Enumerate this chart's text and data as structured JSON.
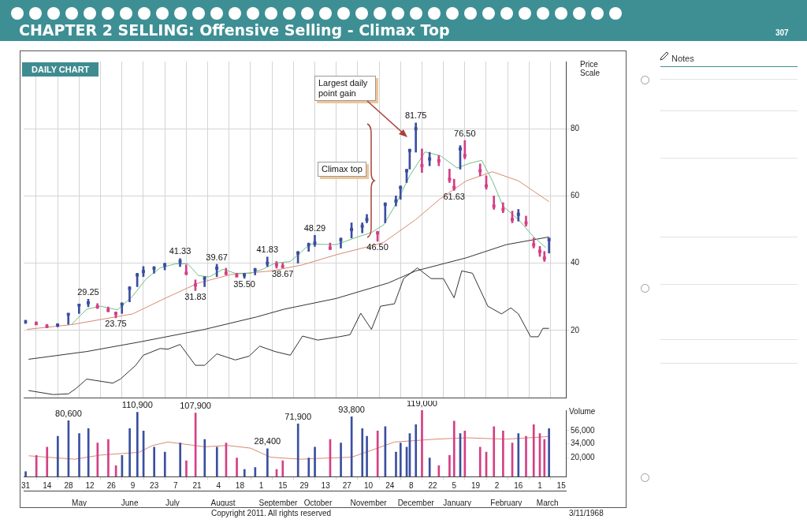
{
  "chart_data": [
    {
      "type": "bar",
      "title": "CHAPTER 2 SELLING: Offensive Selling - Climax Top",
      "ylabel": "Price Scale",
      "xlim": [
        "1967-03-30",
        "1968-03-18"
      ],
      "ylim": [
        0,
        100
      ],
      "yticks": [
        20,
        40,
        60,
        80
      ],
      "grid": true,
      "tick_labels": "y",
      "xticks": [
        {
          "value": "1967-03-31",
          "label": null
        },
        {
          "value": "1967-04-14",
          "label": null
        },
        {
          "value": "1967-04-28",
          "label": null
        },
        {
          "value": "1967-05-12",
          "label": null
        },
        {
          "value": "1967-05-26",
          "label": null
        },
        {
          "value": "1967-06-09",
          "label": null
        },
        {
          "value": "1967-06-23",
          "label": null
        },
        {
          "value": "1967-07-07",
          "label": null
        },
        {
          "value": "1967-07-21",
          "label": null
        },
        {
          "value": "1967-08-04",
          "label": null
        },
        {
          "value": "1967-08-18",
          "label": null
        },
        {
          "value": "1967-09-01",
          "label": null
        },
        {
          "value": "1967-09-15",
          "label": null
        },
        {
          "value": "1967-09-29",
          "label": null
        },
        {
          "value": "1967-10-13",
          "label": null
        },
        {
          "value": "1967-10-27",
          "label": null
        },
        {
          "value": "1967-11-10",
          "label": null
        },
        {
          "value": "1967-11-24",
          "label": null
        },
        {
          "value": "1967-12-08",
          "label": null
        },
        {
          "value": "1967-12-22",
          "label": null
        },
        {
          "value": "1968-01-05",
          "label": null
        },
        {
          "value": "1968-01-19",
          "label": null
        },
        {
          "value": "1968-02-02",
          "label": null
        },
        {
          "value": "1968-02-16",
          "label": null
        },
        {
          "value": "1968-03-01",
          "label": null
        },
        {
          "value": "1968-03-15",
          "label": null
        }
      ],
      "x": [
        "1967-03-31",
        "1967-04-07",
        "1967-04-14",
        "1967-04-21",
        "1967-04-28",
        "1967-05-05",
        "1967-05-11",
        "1967-05-17",
        "1967-05-24",
        "1967-05-29",
        "1967-06-02",
        "1967-06-07",
        "1967-06-12",
        "1967-06-16",
        "1967-06-23",
        "1967-06-30",
        "1967-07-10",
        "1967-07-14",
        "1967-07-20",
        "1967-07-26",
        "1967-08-03",
        "1967-08-09",
        "1967-08-16",
        "1967-08-21",
        "1967-08-28",
        "1967-09-05",
        "1967-09-11",
        "1967-09-15",
        "1967-09-25",
        "1967-10-02",
        "1967-10-06",
        "1967-10-16",
        "1967-10-23",
        "1967-10-30",
        "1967-11-06",
        "1967-11-09",
        "1967-11-16",
        "1967-11-21",
        "1967-11-28",
        "1967-12-01",
        "1967-12-05",
        "1967-12-07",
        "1967-12-11",
        "1967-12-15",
        "1967-12-20",
        "1967-12-26",
        "1968-01-02",
        "1968-01-05",
        "1968-01-09",
        "1968-01-12",
        "1968-01-22",
        "1968-01-26",
        "1968-01-31",
        "1968-02-06",
        "1968-02-12",
        "1968-02-16",
        "1968-02-21",
        "1968-02-26",
        "1968-03-01",
        "1968-03-04",
        "1968-03-07"
      ],
      "series": [
        {
          "type": "bar",
          "base": [
            22,
            21.8,
            20.8,
            21,
            21.8,
            25,
            27,
            26.5,
            25.5,
            23.75,
            25,
            28.5,
            33,
            36,
            37,
            38,
            39,
            36.5,
            31.83,
            33,
            36,
            36.5,
            36,
            35.5,
            36.5,
            39,
            38.5,
            38.67,
            40,
            43.5,
            45,
            44,
            44.5,
            47.5,
            49,
            52,
            46.5,
            52,
            57,
            59,
            64,
            68,
            73,
            67,
            69,
            69,
            64,
            61.63,
            68,
            71,
            66,
            62,
            56,
            55,
            52,
            52.5,
            51,
            44.5,
            42,
            40.5,
            43
          ],
          "values": [
            1,
            0.8,
            1,
            1,
            3.2,
            2.8,
            2.25,
            1.5,
            1.5,
            1.75,
            3,
            4.5,
            4,
            3,
            2,
            2,
            2.33,
            3,
            3.17,
            3,
            3.67,
            2,
            1,
            1.5,
            2,
            2.83,
            2,
            1.33,
            3.5,
            2.5,
            3.29,
            2,
            3,
            4.5,
            3,
            2.5,
            3,
            6,
            3,
            4,
            4,
            6,
            8.75,
            7,
            4,
            3,
            4,
            3.37,
            7,
            5.5,
            3.5,
            4,
            4,
            3,
            3.5,
            3.5,
            3,
            3,
            3,
            3,
            4.5
          ],
          "colors": [
            "#3a4fa0",
            "#d43f85",
            "#d43f85",
            "#3a4fa0",
            "#3a4fa0",
            "#3a4fa0",
            "#3a4fa0",
            "#d43f85",
            "#d43f85",
            "#d43f85",
            "#3a4fa0",
            "#3a4fa0",
            "#3a4fa0",
            "#3a4fa0",
            "#3a4fa0",
            "#3a4fa0",
            "#3a4fa0",
            "#d43f85",
            "#d43f85",
            "#3a4fa0",
            "#3a4fa0",
            "#d43f85",
            "#d43f85",
            "#3a4fa0",
            "#3a4fa0",
            "#3a4fa0",
            "#d43f85",
            "#d43f85",
            "#3a4fa0",
            "#3a4fa0",
            "#3a4fa0",
            "#d43f85",
            "#3a4fa0",
            "#3a4fa0",
            "#3a4fa0",
            "#3a4fa0",
            "#d43f85",
            "#3a4fa0",
            "#3a4fa0",
            "#3a4fa0",
            "#3a4fa0",
            "#3a4fa0",
            "#3a4fa0",
            "#d43f85",
            "#3a4fa0",
            "#d43f85",
            "#d43f85",
            "#d43f85",
            "#3a4fa0",
            "#d43f85",
            "#d43f85",
            "#d43f85",
            "#d43f85",
            "#d43f85",
            "#d43f85",
            "#3a4fa0",
            "#d43f85",
            "#d43f85",
            "#d43f85",
            "#d43f85",
            "#3a4fa0"
          ]
        },
        {
          "type": "scatter",
          "marker": "square",
          "values": [
            22.6,
            22,
            21.2,
            21.6,
            24.8,
            27.5,
            28.2,
            27,
            26,
            25,
            27.8,
            32.5,
            36.5,
            37.5,
            38.5,
            39.5,
            40.5,
            37,
            33.5,
            35.5,
            38.5,
            37,
            36.2,
            36.5,
            38,
            40,
            39.5,
            39,
            43,
            45.5,
            46,
            44.5,
            47,
            50,
            51,
            53,
            49,
            57.5,
            58.5,
            62.5,
            67.5,
            73.5,
            80,
            69,
            71,
            70.5,
            65,
            62.5,
            74,
            72,
            67.5,
            63,
            57,
            56,
            53,
            54.5,
            52,
            45.5,
            43.5,
            41.5,
            47
          ],
          "colors": [
            "#3a4fa0",
            "#d43f85",
            "#d43f85",
            "#3a4fa0",
            "#3a4fa0",
            "#3a4fa0",
            "#3a4fa0",
            "#d43f85",
            "#d43f85",
            "#d43f85",
            "#3a4fa0",
            "#3a4fa0",
            "#3a4fa0",
            "#3a4fa0",
            "#3a4fa0",
            "#3a4fa0",
            "#3a4fa0",
            "#d43f85",
            "#d43f85",
            "#3a4fa0",
            "#3a4fa0",
            "#d43f85",
            "#d43f85",
            "#3a4fa0",
            "#3a4fa0",
            "#3a4fa0",
            "#d43f85",
            "#d43f85",
            "#3a4fa0",
            "#3a4fa0",
            "#3a4fa0",
            "#d43f85",
            "#3a4fa0",
            "#3a4fa0",
            "#3a4fa0",
            "#3a4fa0",
            "#d43f85",
            "#3a4fa0",
            "#3a4fa0",
            "#3a4fa0",
            "#3a4fa0",
            "#3a4fa0",
            "#3a4fa0",
            "#d43f85",
            "#3a4fa0",
            "#d43f85",
            "#d43f85",
            "#d43f85",
            "#3a4fa0",
            "#d43f85",
            "#d43f85",
            "#d43f85",
            "#d43f85",
            "#d43f85",
            "#d43f85",
            "#3a4fa0",
            "#d43f85",
            "#d43f85",
            "#d43f85",
            "#d43f85",
            "#3a4fa0"
          ]
        },
        {
          "type": "line",
          "color": "#6fbf85",
          "x": [
            "1967-04-30",
            "1967-05-10",
            "1967-05-19",
            "1967-05-30",
            "1967-06-09",
            "1967-06-18",
            "1967-06-27",
            "1967-07-07",
            "1967-07-15",
            "1967-07-22",
            "1967-07-29",
            "1967-08-07",
            "1967-08-15",
            "1967-08-25",
            "1967-09-02",
            "1967-09-10",
            "1967-09-20",
            "1967-10-03",
            "1967-10-20",
            "1967-11-03",
            "1967-11-12",
            "1967-11-20",
            "1967-11-28",
            "1967-12-07",
            "1967-12-17",
            "1967-12-27",
            "1968-01-07",
            "1968-01-15",
            "1968-01-23",
            "1968-01-30",
            "1968-02-06",
            "1968-02-16",
            "1968-02-26",
            "1968-03-05"
          ],
          "values": [
            21.7,
            26.3,
            27.2,
            26.1,
            30.2,
            35.4,
            38.6,
            39.8,
            39.8,
            36.3,
            35.9,
            38.2,
            37,
            37,
            38.2,
            40,
            40.5,
            45.7,
            45.5,
            47.8,
            49.1,
            51.4,
            57.6,
            66,
            73.1,
            72,
            68.3,
            69.7,
            70.6,
            64.5,
            56.9,
            53,
            47.8,
            44.6
          ]
        },
        {
          "type": "line",
          "color": "#d98a70",
          "x": [
            "1967-04-01",
            "1967-04-30",
            "1967-06-09",
            "1967-06-30",
            "1967-07-22",
            "1967-08-12",
            "1967-09-08",
            "1967-09-28",
            "1967-10-20",
            "1967-11-15",
            "1967-11-20",
            "1967-12-11",
            "1967-12-27",
            "1968-01-13",
            "1968-01-30",
            "1968-02-16",
            "1968-03-07"
          ],
          "values": [
            20.3,
            21.7,
            24.9,
            29.5,
            34.1,
            36.6,
            37.7,
            39.5,
            42.5,
            45.5,
            46.2,
            53,
            59.2,
            64.5,
            67.2,
            64.5,
            58.3
          ]
        },
        {
          "type": "line",
          "color": "#333333",
          "x": [
            "1967-04-02",
            "1967-05-10",
            "1967-06-13",
            "1967-07-26",
            "1967-08-29",
            "1967-09-16",
            "1967-10-20",
            "1967-11-23",
            "1967-12-11",
            "1968-01-13",
            "1968-02-08",
            "1968-03-07"
          ],
          "values": [
            11.4,
            13.7,
            16.5,
            20.3,
            24,
            26.3,
            29.5,
            34.1,
            37.7,
            41.6,
            45.5,
            47.8
          ]
        },
        {
          "type": "line",
          "color": "#333333",
          "x": [
            "1967-04-02",
            "1967-04-18",
            "1967-04-28",
            "1967-05-03",
            "1967-05-10",
            "1967-05-27",
            "1967-06-01",
            "1967-06-11",
            "1967-06-16",
            "1967-06-27",
            "1967-07-02",
            "1967-07-10",
            "1967-07-20",
            "1967-07-26",
            "1967-08-03",
            "1967-08-15",
            "1967-08-24",
            "1967-08-31",
            "1967-09-10",
            "1967-09-20",
            "1967-09-28",
            "1967-10-08",
            "1967-10-22",
            "1967-10-29",
            "1967-11-05",
            "1967-11-12",
            "1967-11-18",
            "1967-11-27",
            "1967-12-03",
            "1967-12-12",
            "1967-12-21",
            "1967-12-29",
            "1968-01-05",
            "1968-01-10",
            "1968-01-17",
            "1968-01-27",
            "1968-02-05",
            "1968-02-11",
            "1968-02-16",
            "1968-02-24",
            "1968-02-29",
            "1968-03-03",
            "1968-03-07"
          ],
          "values": [
            2.1,
            0.9,
            1.1,
            2.7,
            5.5,
            4.3,
            5.5,
            9.6,
            12.6,
            14.6,
            14.4,
            15.8,
            9.6,
            9.6,
            13,
            11.2,
            12.3,
            15.3,
            13.7,
            12.6,
            18.3,
            17.1,
            18.1,
            18.7,
            25.1,
            20.3,
            27.2,
            27.9,
            35.4,
            38.6,
            35.4,
            35.4,
            29.7,
            37.7,
            37,
            27.2,
            24.9,
            26.7,
            24.9,
            18.1,
            18.1,
            20.6,
            20.6
          ]
        }
      ],
      "annotations": [
        "DAILY CHART",
        "Largest daily point gain",
        "Climax top",
        {
          "text": "81.75",
          "x": "1967-12-11",
          "y": 81.75
        },
        {
          "text": "76.50",
          "x": "1968-01-12",
          "y": 76.5
        },
        {
          "text": "61.63",
          "x": "1968-01-05",
          "y": 61.63
        },
        {
          "text": "48.29",
          "x": "1967-10-06",
          "y": 48.29
        },
        {
          "text": "46.50",
          "x": "1967-11-16",
          "y": 46.5
        },
        {
          "text": "41.33",
          "x": "1967-07-10",
          "y": 41.33
        },
        {
          "text": "41.83",
          "x": "1967-09-05",
          "y": 41.83
        },
        {
          "text": "39.67",
          "x": "1967-08-03",
          "y": 39.67
        },
        {
          "text": "38.67",
          "x": "1967-09-15",
          "y": 38.67
        },
        {
          "text": "35.50",
          "x": "1967-08-21",
          "y": 35.5
        },
        {
          "text": "31.83",
          "x": "1967-07-20",
          "y": 31.83
        },
        {
          "text": "29.25",
          "x": "1967-05-11",
          "y": 29.25
        },
        {
          "text": "23.75",
          "x": "1967-05-29",
          "y": 23.75
        }
      ]
    },
    {
      "type": "bar",
      "ylabel": "Volume",
      "log": true,
      "ylim": [
        10000,
        120000
      ],
      "yticks": [
        {
          "value": 20000,
          "label": "20,000"
        },
        {
          "value": 34000,
          "label": "34,000"
        },
        {
          "value": 56000,
          "label": "56,000"
        }
      ],
      "xlim": [
        "1967-03-30",
        "1968-03-18"
      ],
      "xticks": [
        {
          "value": "1967-03-31",
          "label": "31"
        },
        {
          "value": "1967-04-14",
          "label": "14"
        },
        {
          "value": "1967-04-28",
          "label": "28"
        },
        {
          "value": "1967-05-12",
          "label": "12"
        },
        {
          "value": "1967-05-26",
          "label": "26"
        },
        {
          "value": "1967-06-09",
          "label": "9"
        },
        {
          "value": "1967-06-23",
          "label": "23"
        },
        {
          "value": "1967-07-07",
          "label": "7"
        },
        {
          "value": "1967-07-21",
          "label": "21"
        },
        {
          "value": "1967-08-04",
          "label": "4"
        },
        {
          "value": "1967-08-18",
          "label": "18"
        },
        {
          "value": "1967-09-01",
          "label": "1"
        },
        {
          "value": "1967-09-15",
          "label": "15"
        },
        {
          "value": "1967-09-29",
          "label": "29"
        },
        {
          "value": "1967-10-13",
          "label": "13"
        },
        {
          "value": "1967-10-27",
          "label": "27"
        },
        {
          "value": "1967-11-10",
          "label": "10"
        },
        {
          "value": "1967-11-24",
          "label": "24"
        },
        {
          "value": "1967-12-08",
          "label": "8"
        },
        {
          "value": "1967-12-22",
          "label": "22"
        },
        {
          "value": "1968-01-05",
          "label": "5"
        },
        {
          "value": "1968-01-19",
          "label": "19"
        },
        {
          "value": "1968-02-02",
          "label": "2"
        },
        {
          "value": "1968-02-16",
          "label": "16"
        },
        {
          "value": "1968-03-01",
          "label": "1"
        },
        {
          "value": "1968-03-15",
          "label": "15"
        }
      ],
      "x2lim": [
        "1967-03-30",
        "1968-03-18"
      ],
      "x2ticks": [
        {
          "value": "1967-05-05",
          "label": "May"
        },
        {
          "value": "1967-06-07",
          "label": "June"
        },
        {
          "value": "1967-07-05",
          "label": "July"
        },
        {
          "value": "1967-08-07",
          "label": "August"
        },
        {
          "value": "1967-09-12",
          "label": "September"
        },
        {
          "value": "1967-10-08",
          "label": "October"
        },
        {
          "value": "1967-11-10",
          "label": "November"
        },
        {
          "value": "1967-12-11",
          "label": "December"
        },
        {
          "value": "1968-01-07",
          "label": "January"
        },
        {
          "value": "1968-02-08",
          "label": "February"
        },
        {
          "value": "1968-03-06",
          "label": "March"
        }
      ],
      "x": [
        "1967-03-31",
        "1967-04-07",
        "1967-04-14",
        "1967-04-21",
        "1967-04-28",
        "1967-05-05",
        "1967-05-11",
        "1967-05-17",
        "1967-05-24",
        "1967-05-29",
        "1967-06-02",
        "1967-06-07",
        "1967-06-12",
        "1967-06-16",
        "1967-06-23",
        "1967-06-30",
        "1967-07-10",
        "1967-07-14",
        "1967-07-20",
        "1967-07-26",
        "1967-08-03",
        "1967-08-09",
        "1967-08-16",
        "1967-08-21",
        "1967-08-28",
        "1967-09-05",
        "1967-09-11",
        "1967-09-15",
        "1967-09-25",
        "1967-10-02",
        "1967-10-06",
        "1967-10-16",
        "1967-10-23",
        "1967-10-30",
        "1967-11-06",
        "1967-11-09",
        "1967-11-16",
        "1967-11-21",
        "1967-11-28",
        "1967-12-01",
        "1967-12-05",
        "1967-12-07",
        "1967-12-11",
        "1967-12-15",
        "1967-12-20",
        "1967-12-26",
        "1968-01-02",
        "1968-01-05",
        "1968-01-09",
        "1968-01-12",
        "1968-01-22",
        "1968-01-26",
        "1968-01-31",
        "1968-02-06",
        "1968-02-12",
        "1968-02-16",
        "1968-02-21",
        "1968-02-26",
        "1968-03-01",
        "1968-03-04",
        "1968-03-07"
      ],
      "series": [
        {
          "type": "bar",
          "values": [
            12000,
            22000,
            30000,
            45000,
            80600,
            50000,
            60000,
            35000,
            40000,
            15000,
            22000,
            60000,
            110900,
            55000,
            30000,
            25000,
            35000,
            18000,
            107900,
            40000,
            30000,
            35000,
            20000,
            13000,
            14000,
            28400,
            13000,
            18000,
            71900,
            20000,
            30000,
            40000,
            35000,
            93800,
            60000,
            45000,
            55000,
            65000,
            25000,
            35000,
            30000,
            50000,
            70000,
            119000,
            20000,
            15000,
            22000,
            80000,
            50000,
            55000,
            30000,
            25000,
            65000,
            55000,
            35000,
            50000,
            45000,
            70000,
            50000,
            40000,
            60000
          ],
          "colors": [
            "#3a4fa0",
            "#d43f85",
            "#d43f85",
            "#3a4fa0",
            "#3a4fa0",
            "#3a4fa0",
            "#3a4fa0",
            "#d43f85",
            "#d43f85",
            "#d43f85",
            "#3a4fa0",
            "#3a4fa0",
            "#3a4fa0",
            "#3a4fa0",
            "#3a4fa0",
            "#3a4fa0",
            "#3a4fa0",
            "#d43f85",
            "#d43f85",
            "#3a4fa0",
            "#3a4fa0",
            "#d43f85",
            "#d43f85",
            "#3a4fa0",
            "#3a4fa0",
            "#3a4fa0",
            "#d43f85",
            "#d43f85",
            "#3a4fa0",
            "#3a4fa0",
            "#3a4fa0",
            "#d43f85",
            "#3a4fa0",
            "#3a4fa0",
            "#3a4fa0",
            "#3a4fa0",
            "#d43f85",
            "#3a4fa0",
            "#3a4fa0",
            "#3a4fa0",
            "#3a4fa0",
            "#3a4fa0",
            "#3a4fa0",
            "#d43f85",
            "#3a4fa0",
            "#d43f85",
            "#d43f85",
            "#d43f85",
            "#3a4fa0",
            "#d43f85",
            "#d43f85",
            "#d43f85",
            "#d43f85",
            "#d43f85",
            "#d43f85",
            "#3a4fa0",
            "#d43f85",
            "#d43f85",
            "#d43f85",
            "#d43f85",
            "#3a4fa0"
          ]
        },
        {
          "type": "line",
          "color": "#d98a70",
          "x": [
            "1967-04-02",
            "1967-05-02",
            "1967-05-19",
            "1967-06-13",
            "1967-06-22",
            "1967-07-02",
            "1967-07-26",
            "1967-08-10",
            "1967-08-25",
            "1967-09-07",
            "1967-09-27",
            "1967-10-07",
            "1967-10-30",
            "1967-11-12",
            "1967-11-27",
            "1967-12-24",
            "1968-01-13",
            "1968-02-08",
            "1968-03-07"
          ],
          "values": [
            21700,
            19100,
            22300,
            24700,
            32000,
            36400,
            30400,
            32000,
            28900,
            20600,
            19100,
            19600,
            20600,
            26700,
            36400,
            40500,
            42600,
            40500,
            44700
          ]
        }
      ],
      "annotations": [
        "Copyright 2011. All rights reserved",
        "3/11/1968",
        {
          "text": "80,600",
          "x": "1967-04-28",
          "y": 80600
        },
        {
          "text": "110,900",
          "x": "1967-06-12",
          "y": 110900
        },
        {
          "text": "107,900",
          "x": "1967-07-20",
          "y": 107900
        },
        {
          "text": "28,400",
          "x": "1967-09-05",
          "y": 28400
        },
        {
          "text": "71,900",
          "x": "1967-09-25",
          "y": 71900
        },
        {
          "text": "93,800",
          "x": "1967-10-30",
          "y": 93800
        },
        {
          "text": "119,000",
          "x": "1967-12-15",
          "y": 119000
        }
      ]
    },
    {
      "type": "other",
      "title": "Notes",
      "annotations": [
        "307"
      ]
    }
  ]
}
